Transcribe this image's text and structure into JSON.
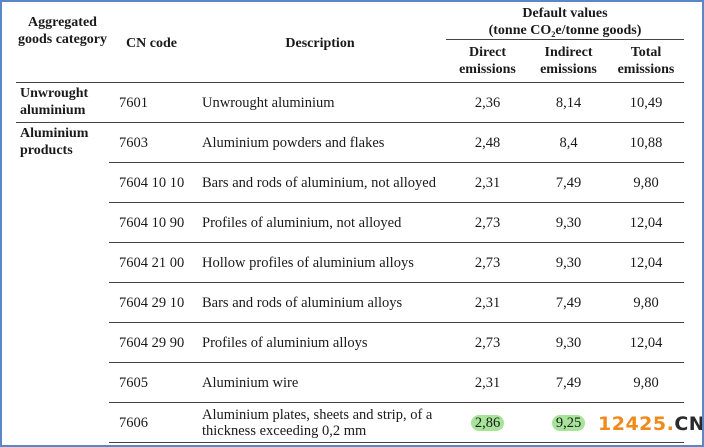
{
  "header": {
    "aggregated_goods_category": "Aggregated goods category",
    "cn_code": "CN code",
    "description": "Description",
    "default_values_line1": "Default values",
    "default_values_line2": "(tonne CO₂e/tonne goods)",
    "direct_emissions": "Direct emissions",
    "indirect_emissions": "Indirect emissions",
    "total_emissions": "Total emissions"
  },
  "categories": {
    "unwrought": "Unwrought aluminium",
    "products": "Aluminium products"
  },
  "rows": [
    {
      "cn": "7601",
      "desc": "Unwrought aluminium",
      "direct": "2,36",
      "indirect": "8,14",
      "total": "10,49"
    },
    {
      "cn": "7603",
      "desc": "Aluminium powders and flakes",
      "direct": "2,48",
      "indirect": "8,4",
      "total": "10,88"
    },
    {
      "cn": "7604 10 10",
      "desc": "Bars and rods of aluminium, not alloyed",
      "direct": "2,31",
      "indirect": "7,49",
      "total": "9,80"
    },
    {
      "cn": "7604 10 90",
      "desc": "Profiles of aluminium, not alloyed",
      "direct": "2,73",
      "indirect": "9,30",
      "total": "12,04"
    },
    {
      "cn": "7604 21 00",
      "desc": "Hollow profiles of aluminium alloys",
      "direct": "2,73",
      "indirect": "9,30",
      "total": "12,04"
    },
    {
      "cn": "7604 29 10",
      "desc": "Bars and rods of aluminium alloys",
      "direct": "2,31",
      "indirect": "7,49",
      "total": "9,80"
    },
    {
      "cn": "7604 29 90",
      "desc": "Profiles of aluminium alloys",
      "direct": "2,73",
      "indirect": "9,30",
      "total": "12,04"
    },
    {
      "cn": "7605",
      "desc": "Aluminium wire",
      "direct": "2,31",
      "indirect": "7,49",
      "total": "9,80"
    },
    {
      "cn": "7606",
      "desc": "Aluminium plates, sheets and strip, of a thickness exceeding 0,2 mm",
      "direct": "2,86",
      "indirect": "9,25",
      "total": ""
    }
  ],
  "highlight_color": "#a7e49a",
  "border_color": "#5b87c7",
  "watermark": {
    "digits": "12425",
    "dot": ".",
    "cn": "CN"
  }
}
